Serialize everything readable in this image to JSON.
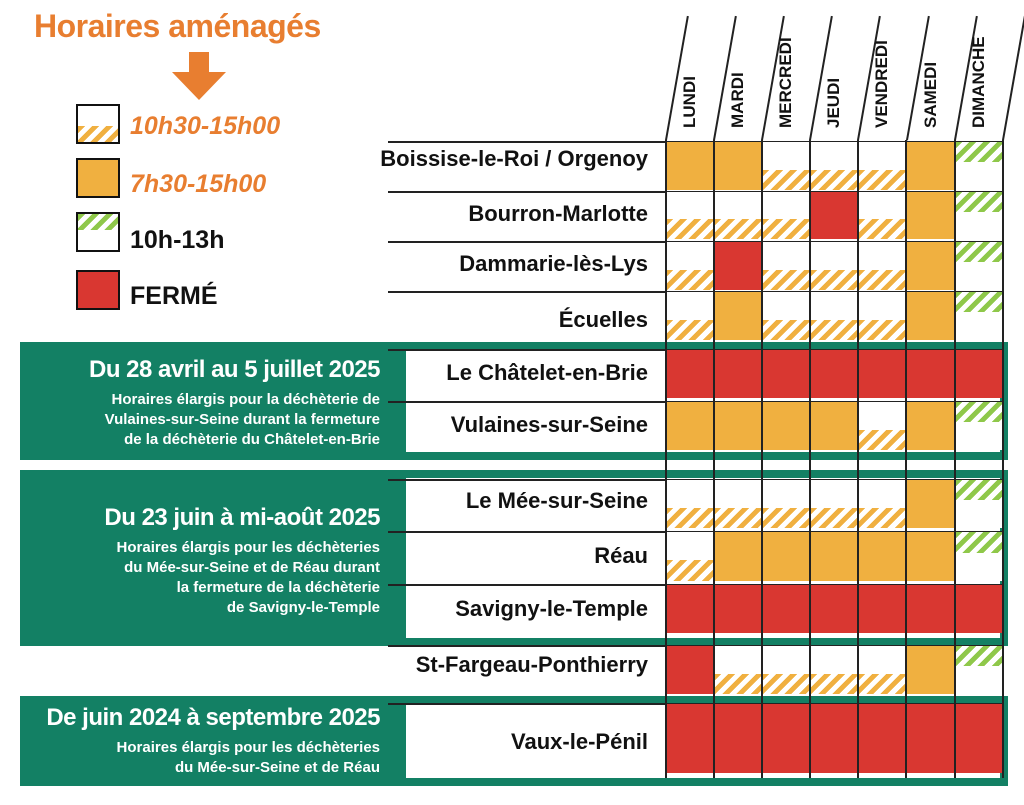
{
  "title": "Horaires aménagés",
  "icons": {
    "arrow": "arrow-down-icon"
  },
  "colors": {
    "closed": "#d93731",
    "full": "#f0b040",
    "partial_stripe": "#f0b040",
    "sunday_stripe": "#8fc84a",
    "band": "#138064",
    "title": "#e87e30"
  },
  "legend": [
    {
      "key": "partial",
      "label": "10h30-15h00"
    },
    {
      "key": "full",
      "label": "7h30-15h00"
    },
    {
      "key": "sunday",
      "label": "10h-13h"
    },
    {
      "key": "closed",
      "label": "FERMÉ"
    }
  ],
  "days": [
    "LUNDI",
    "MARDI",
    "MERCREDI",
    "JEUDI",
    "VENDREDI",
    "SAMEDI",
    "DIMANCHE"
  ],
  "rows": [
    {
      "name": "Boissise-le-Roi / Orgenoy",
      "schedule": [
        "full",
        "full",
        "partial",
        "partial",
        "partial",
        "full",
        "sunday"
      ]
    },
    {
      "name": "Bourron-Marlotte",
      "schedule": [
        "partial",
        "partial",
        "partial",
        "closed",
        "partial",
        "full",
        "sunday"
      ]
    },
    {
      "name": "Dammarie-lès-Lys",
      "schedule": [
        "partial",
        "closed",
        "partial",
        "partial",
        "partial",
        "full",
        "sunday"
      ]
    },
    {
      "name": "Écuelles",
      "schedule": [
        "partial",
        "full",
        "partial",
        "partial",
        "partial",
        "full",
        "sunday"
      ]
    },
    {
      "name": "Le Châtelet-en-Brie",
      "schedule": [
        "closed",
        "closed",
        "closed",
        "closed",
        "closed",
        "closed",
        "closed"
      ]
    },
    {
      "name": "Vulaines-sur-Seine",
      "schedule": [
        "full",
        "full",
        "full",
        "full",
        "partial",
        "full",
        "sunday"
      ]
    },
    {
      "name": "Le Mée-sur-Seine",
      "schedule": [
        "partial",
        "partial",
        "partial",
        "partial",
        "partial",
        "full",
        "sunday"
      ]
    },
    {
      "name": "Réau",
      "schedule": [
        "partial",
        "full",
        "full",
        "full",
        "full",
        "full",
        "sunday"
      ]
    },
    {
      "name": "Savigny-le-Temple",
      "schedule": [
        "closed",
        "closed",
        "closed",
        "closed",
        "closed",
        "closed",
        "closed"
      ]
    },
    {
      "name": "St-Fargeau-Ponthierry",
      "schedule": [
        "closed",
        "partial",
        "partial",
        "partial",
        "partial",
        "full",
        "sunday"
      ]
    },
    {
      "name": "Vaux-le-Pénil",
      "schedule": [
        "closed",
        "closed",
        "closed",
        "closed",
        "closed",
        "closed",
        "closed"
      ]
    }
  ],
  "bands": [
    {
      "heading": "Du 28 avril au 5 juillet 2025",
      "lines": [
        "Horaires élargis pour la déchèterie de",
        "Vulaines-sur-Seine durant la fermeture",
        "de la déchèterie du Châtelet-en-Brie"
      ]
    },
    {
      "heading": "Du 23 juin à mi-août 2025",
      "lines": [
        "Horaires élargis pour les déchèteries",
        "du Mée-sur-Seine et de Réau durant",
        "la fermeture de la déchèterie",
        "de Savigny-le-Temple"
      ]
    },
    {
      "heading": "De juin 2024 à septembre 2025",
      "lines": [
        "Horaires élargis pour les déchèteries",
        "du Mée-sur-Seine et de Réau"
      ]
    }
  ]
}
